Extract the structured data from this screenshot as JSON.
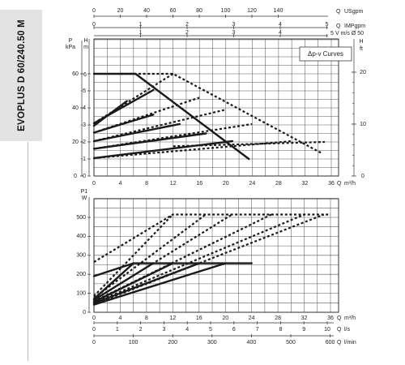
{
  "model_label": "EVOPLUS D 60/240.50 M",
  "colors": {
    "curve": "#1a1a1a",
    "grid": "#5a5a5a",
    "side_tab": "#e3e3e3"
  },
  "chart_data": [
    {
      "type": "line",
      "title": "",
      "legend_box": "Δp-v Curves",
      "x_axes": {
        "bottom": {
          "label": "Q m³/h",
          "range": [
            0,
            36
          ],
          "ticks": [
            "0",
            "4",
            "8",
            "12",
            "16",
            "20",
            "24",
            "28",
            "32",
            "36"
          ]
        },
        "top_usgpm": {
          "label": "Q USgpm",
          "range": [
            0,
            160
          ],
          "ticks": [
            "0",
            "20",
            "40",
            "60",
            "80",
            "100",
            "120",
            "140"
          ]
        },
        "top_impgpm": {
          "label": "Q IMPgpm",
          "range": [
            0,
            140
          ],
          "ticks": [
            "0",
            "1",
            "2",
            "3",
            "4",
            "5"
          ]
        },
        "top_velocity": {
          "label": "V m/s Ø 50",
          "range": [
            0,
            5
          ],
          "ticks": [
            "1",
            "2",
            "3",
            "4",
            "5"
          ]
        }
      },
      "y_axes": {
        "left_kpa": {
          "label": "P kPa",
          "range": [
            0,
            60
          ],
          "ticks": [
            "0",
            "20",
            "40",
            "60"
          ]
        },
        "left_m": {
          "label": "H m",
          "range": [
            0,
            6
          ],
          "ticks": [
            "0",
            "1",
            "2",
            "3",
            "4",
            "5",
            "6"
          ]
        },
        "right_ft": {
          "label": "H ft",
          "range": [
            0,
            20
          ],
          "ticks": [
            "0",
            "10",
            "20"
          ]
        }
      },
      "grid": true,
      "series": [
        {
          "style": "solid",
          "points": [
            [
              0,
              2.95
            ],
            [
              5,
              4.4
            ]
          ]
        },
        {
          "style": "solid",
          "points": [
            [
              0,
              2.55
            ],
            [
              9,
              3.6
            ]
          ]
        },
        {
          "style": "solid",
          "points": [
            [
              0,
              2.05
            ],
            [
              13,
              3.05
            ]
          ]
        },
        {
          "style": "solid",
          "points": [
            [
              0,
              1.6
            ],
            [
              17,
              2.5
            ]
          ]
        },
        {
          "style": "solid",
          "points": [
            [
              0,
              1.05
            ],
            [
              21,
              2.05
            ]
          ]
        },
        {
          "style": "solid",
          "points": [
            [
              0,
              3.1
            ],
            [
              9,
              5.05
            ]
          ]
        },
        {
          "style": "solid",
          "points": [
            [
              0,
              6.0
            ],
            [
              6.3,
              6.0
            ],
            [
              23.5,
              1.0
            ]
          ]
        },
        {
          "style": "dashed",
          "points": [
            [
              4,
              6.0
            ],
            [
              12,
              6.0
            ],
            [
              34.5,
              1.35
            ]
          ]
        },
        {
          "style": "dashed",
          "points": [
            [
              0,
              3.1
            ],
            [
              12,
              6.0
            ]
          ]
        },
        {
          "style": "dashed",
          "points": [
            [
              0,
              2.55
            ],
            [
              16,
              4.6
            ]
          ]
        },
        {
          "style": "dashed",
          "points": [
            [
              0,
              2.05
            ],
            [
              20,
              3.9
            ]
          ]
        },
        {
          "style": "dashed",
          "points": [
            [
              0,
              1.6
            ],
            [
              24,
              3.05
            ]
          ]
        },
        {
          "style": "dashed",
          "points": [
            [
              0,
              1.05
            ],
            [
              30,
              2.05
            ]
          ]
        },
        {
          "style": "dashed",
          "points": [
            [
              12,
              1.75
            ],
            [
              35,
              2.0
            ]
          ]
        }
      ]
    },
    {
      "type": "line",
      "title": "",
      "x_axes": {
        "top_m3h": {
          "label": "Q m³/h",
          "range": [
            0,
            36
          ],
          "ticks": [
            "0",
            "4",
            "8",
            "12",
            "16",
            "20",
            "24",
            "28",
            "32",
            "36"
          ]
        },
        "lps": {
          "label": "Q l/s",
          "range": [
            0,
            10
          ],
          "ticks": [
            "0",
            "1",
            "2",
            "3",
            "4",
            "5",
            "6",
            "7",
            "8",
            "9",
            "10"
          ]
        },
        "lpm": {
          "label": "Q l/min",
          "range": [
            0,
            600
          ],
          "ticks": [
            "0",
            "100",
            "200",
            "300",
            "400",
            "500",
            "600"
          ]
        }
      },
      "y_axes": {
        "left_w": {
          "label": "P1 W",
          "range": [
            0,
            500
          ],
          "ticks": [
            "0",
            "100",
            "200",
            "300",
            "400",
            "500"
          ]
        }
      },
      "grid": true,
      "series": [
        {
          "style": "solid",
          "points": [
            [
              0,
              190
            ],
            [
              6,
              258
            ],
            [
              24,
              258
            ]
          ]
        },
        {
          "style": "solid",
          "points": [
            [
              0,
              70
            ],
            [
              6,
              258
            ]
          ]
        },
        {
          "style": "solid",
          "points": [
            [
              0,
              65
            ],
            [
              9,
              258
            ]
          ]
        },
        {
          "style": "solid",
          "points": [
            [
              0,
              55
            ],
            [
              12,
              258
            ]
          ]
        },
        {
          "style": "solid",
          "points": [
            [
              0,
              48
            ],
            [
              16,
              258
            ]
          ]
        },
        {
          "style": "solid",
          "points": [
            [
              0,
              40
            ],
            [
              20,
              258
            ]
          ]
        },
        {
          "style": "dashed",
          "points": [
            [
              0,
              265
            ],
            [
              12,
              515
            ],
            [
              36,
              515
            ]
          ]
        },
        {
          "style": "dashed",
          "points": [
            [
              0,
              85
            ],
            [
              12,
              515
            ]
          ]
        },
        {
          "style": "dashed",
          "points": [
            [
              0,
              75
            ],
            [
              17,
              515
            ]
          ]
        },
        {
          "style": "dashed",
          "points": [
            [
              0,
              65
            ],
            [
              21,
              515
            ]
          ]
        },
        {
          "style": "dashed",
          "points": [
            [
              0,
              58
            ],
            [
              27,
              515
            ]
          ]
        },
        {
          "style": "dashed",
          "points": [
            [
              0,
              50
            ],
            [
              32,
              515
            ]
          ]
        },
        {
          "style": "dashed",
          "points": [
            [
              0,
              42
            ],
            [
              35,
              515
            ]
          ]
        }
      ]
    }
  ]
}
